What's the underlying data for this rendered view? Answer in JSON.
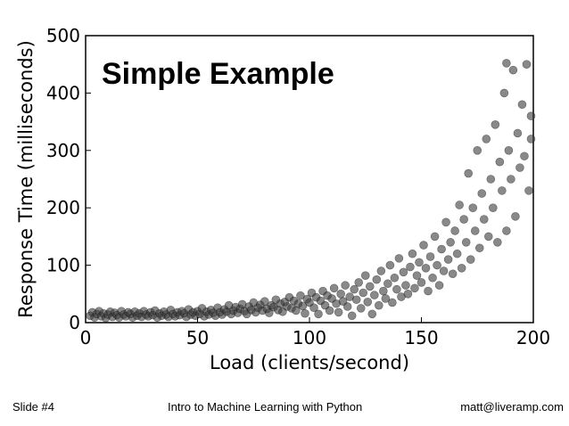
{
  "slide": {
    "number_label": "Slide #4",
    "footer_center": "Intro to Machine Learning with Python",
    "footer_right": "matt@liveramp.com"
  },
  "chart_data": {
    "type": "scatter",
    "title": "Simple Example",
    "xlabel": "Load (clients/second)",
    "ylabel": "Response Time (milliseconds)",
    "xlim": [
      0,
      200
    ],
    "ylim": [
      0,
      500
    ],
    "xticks": [
      "0",
      "50",
      "100",
      "150",
      "200"
    ],
    "yticks": [
      "0",
      "100",
      "200",
      "300",
      "400",
      "500"
    ],
    "grid": false,
    "marker_color": "#3a3a3a",
    "series": [
      {
        "values": [
          [
            2,
            12
          ],
          [
            3,
            18
          ],
          [
            4,
            9
          ],
          [
            5,
            15
          ],
          [
            6,
            20
          ],
          [
            7,
            11
          ],
          [
            8,
            16
          ],
          [
            9,
            8
          ],
          [
            10,
            14
          ],
          [
            11,
            19
          ],
          [
            12,
            10
          ],
          [
            13,
            17
          ],
          [
            14,
            13
          ],
          [
            15,
            9
          ],
          [
            16,
            20
          ],
          [
            17,
            14
          ],
          [
            18,
            11
          ],
          [
            19,
            18
          ],
          [
            20,
            15
          ],
          [
            21,
            9
          ],
          [
            22,
            19
          ],
          [
            23,
            12
          ],
          [
            24,
            16
          ],
          [
            25,
            10
          ],
          [
            26,
            20
          ],
          [
            27,
            14
          ],
          [
            28,
            11
          ],
          [
            29,
            18
          ],
          [
            30,
            13
          ],
          [
            31,
            21
          ],
          [
            32,
            9
          ],
          [
            33,
            16
          ],
          [
            34,
            12
          ],
          [
            35,
            19
          ],
          [
            36,
            14
          ],
          [
            37,
            10
          ],
          [
            38,
            22
          ],
          [
            39,
            15
          ],
          [
            40,
            11
          ],
          [
            41,
            18
          ],
          [
            42,
            13
          ],
          [
            43,
            20
          ],
          [
            44,
            16
          ],
          [
            45,
            10
          ],
          [
            46,
            23
          ],
          [
            47,
            14
          ],
          [
            48,
            18
          ],
          [
            49,
            12
          ],
          [
            50,
            20
          ],
          [
            51,
            15
          ],
          [
            52,
            25
          ],
          [
            53,
            11
          ],
          [
            54,
            19
          ],
          [
            55,
            14
          ],
          [
            56,
            22
          ],
          [
            57,
            17
          ],
          [
            58,
            12
          ],
          [
            59,
            26
          ],
          [
            60,
            18
          ],
          [
            61,
            14
          ],
          [
            62,
            23
          ],
          [
            63,
            19
          ],
          [
            64,
            30
          ],
          [
            65,
            15
          ],
          [
            66,
            21
          ],
          [
            67,
            27
          ],
          [
            68,
            17
          ],
          [
            69,
            24
          ],
          [
            70,
            32
          ],
          [
            71,
            20
          ],
          [
            72,
            15
          ],
          [
            73,
            28
          ],
          [
            74,
            22
          ],
          [
            75,
            35
          ],
          [
            76,
            18
          ],
          [
            77,
            26
          ],
          [
            78,
            31
          ],
          [
            79,
            21
          ],
          [
            80,
            37
          ],
          [
            81,
            24
          ],
          [
            82,
            17
          ],
          [
            83,
            30
          ],
          [
            84,
            27
          ],
          [
            85,
            40
          ],
          [
            86,
            22
          ],
          [
            87,
            33
          ],
          [
            88,
            19
          ],
          [
            89,
            36
          ],
          [
            90,
            28
          ],
          [
            91,
            44
          ],
          [
            92,
            25
          ],
          [
            93,
            38
          ],
          [
            94,
            21
          ],
          [
            95,
            33
          ],
          [
            96,
            47
          ],
          [
            97,
            29
          ],
          [
            98,
            16
          ],
          [
            99,
            41
          ],
          [
            100,
            35
          ],
          [
            101,
            52
          ],
          [
            102,
            26
          ],
          [
            103,
            44
          ],
          [
            104,
            15
          ],
          [
            105,
            38
          ],
          [
            106,
            55
          ],
          [
            107,
            30
          ],
          [
            108,
            47
          ],
          [
            109,
            21
          ],
          [
            110,
            42
          ],
          [
            111,
            60
          ],
          [
            112,
            33
          ],
          [
            113,
            18
          ],
          [
            114,
            50
          ],
          [
            115,
            37
          ],
          [
            116,
            65
          ],
          [
            117,
            28
          ],
          [
            118,
            45
          ],
          [
            119,
            12
          ],
          [
            120,
            58
          ],
          [
            121,
            40
          ],
          [
            122,
            70
          ],
          [
            123,
            25
          ],
          [
            124,
            52
          ],
          [
            125,
            82
          ],
          [
            126,
            36
          ],
          [
            127,
            63
          ],
          [
            128,
            15
          ],
          [
            129,
            48
          ],
          [
            130,
            75
          ],
          [
            131,
            30
          ],
          [
            132,
            90
          ],
          [
            133,
            55
          ],
          [
            134,
            42
          ],
          [
            135,
            68
          ],
          [
            136,
            100
          ],
          [
            137,
            35
          ],
          [
            138,
            78
          ],
          [
            139,
            58
          ],
          [
            140,
            112
          ],
          [
            141,
            45
          ],
          [
            142,
            88
          ],
          [
            143,
            65
          ],
          [
            144,
            50
          ],
          [
            145,
            97
          ],
          [
            146,
            120
          ],
          [
            147,
            60
          ],
          [
            148,
            82
          ],
          [
            149,
            105
          ],
          [
            150,
            70
          ],
          [
            151,
            135
          ],
          [
            152,
            95
          ],
          [
            153,
            55
          ],
          [
            154,
            115
          ],
          [
            155,
            78
          ],
          [
            156,
            150
          ],
          [
            157,
            100
          ],
          [
            158,
            65
          ],
          [
            159,
            128
          ],
          [
            160,
            90
          ],
          [
            161,
            175
          ],
          [
            162,
            110
          ],
          [
            163,
            140
          ],
          [
            164,
            85
          ],
          [
            165,
            160
          ],
          [
            166,
            120
          ],
          [
            167,
            205
          ],
          [
            168,
            95
          ],
          [
            169,
            180
          ],
          [
            170,
            140
          ],
          [
            171,
            260
          ],
          [
            172,
            110
          ],
          [
            173,
            200
          ],
          [
            174,
            160
          ],
          [
            175,
            300
          ],
          [
            176,
            130
          ],
          [
            177,
            225
          ],
          [
            178,
            180
          ],
          [
            179,
            320
          ],
          [
            180,
            150
          ],
          [
            181,
            250
          ],
          [
            182,
            200
          ],
          [
            183,
            345
          ],
          [
            184,
            140
          ],
          [
            185,
            280
          ],
          [
            186,
            230
          ],
          [
            187,
            400
          ],
          [
            188,
            160
          ],
          [
            189,
            300
          ],
          [
            190,
            250
          ],
          [
            191,
            440
          ],
          [
            192,
            185
          ],
          [
            193,
            330
          ],
          [
            194,
            270
          ],
          [
            195,
            380
          ],
          [
            196,
            290
          ],
          [
            197,
            450
          ],
          [
            198,
            230
          ],
          [
            199,
            360
          ],
          [
            199,
            320
          ],
          [
            188,
            452
          ]
        ]
      }
    ]
  }
}
